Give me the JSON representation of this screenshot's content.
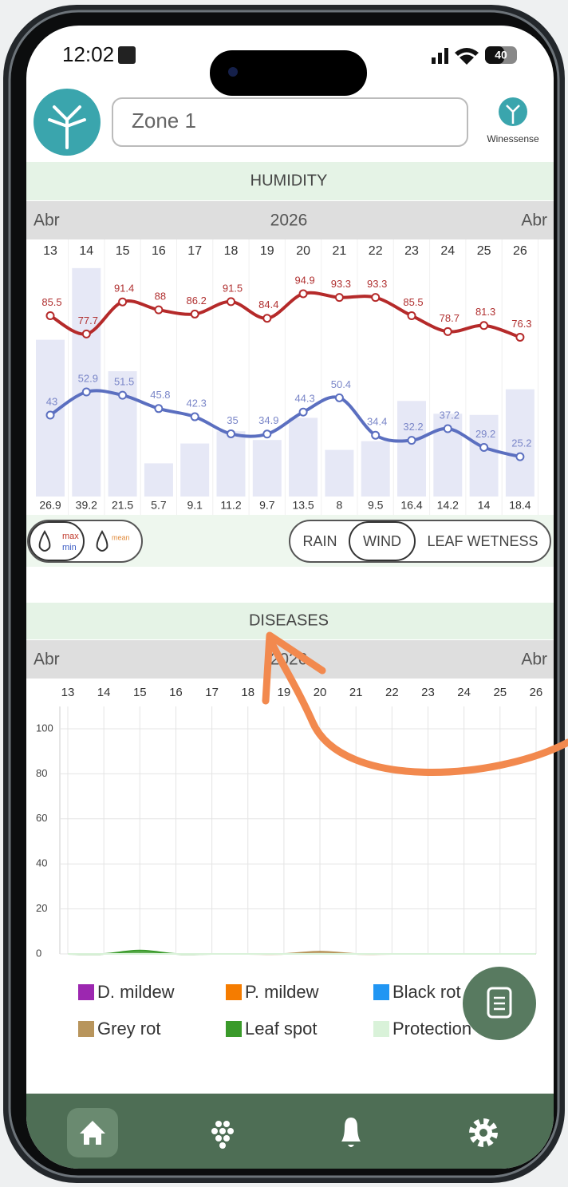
{
  "status_bar": {
    "time": "12:02",
    "battery": "40"
  },
  "header": {
    "zone": "Zone 1",
    "brand": "Winessense"
  },
  "humidity": {
    "title": "HUMIDITY",
    "month_left": "Abr",
    "year": "2026",
    "month_right": "Abr",
    "days": [
      13,
      14,
      15,
      16,
      17,
      18,
      19,
      20,
      21,
      22,
      23,
      24,
      25,
      26
    ],
    "max": [
      85.5,
      77.7,
      91.4,
      88,
      86.2,
      91.5,
      84.4,
      94.9,
      93.3,
      93.3,
      85.5,
      78.7,
      81.3,
      76.3
    ],
    "min": [
      43,
      52.9,
      51.5,
      45.8,
      42.3,
      35,
      34.9,
      44.3,
      50.4,
      34.4,
      32.2,
      37.2,
      29.2,
      25.2
    ],
    "bar_values": [
      26.9,
      39.2,
      21.5,
      5.7,
      9.1,
      11.2,
      9.7,
      13.5,
      8,
      9.5,
      16.4,
      14.2,
      14,
      18.4
    ],
    "toggle_labels": [
      "max",
      "min",
      "mean"
    ],
    "buttons": [
      "RAIN",
      "WIND",
      "LEAF WETNESS"
    ]
  },
  "diseases": {
    "title": "DISEASES",
    "month_left": "Abr",
    "year": "2026",
    "month_right": "Abr",
    "chart_data": {
      "type": "area",
      "categories": [
        13,
        14,
        15,
        16,
        17,
        18,
        19,
        20,
        21,
        22,
        23,
        24,
        25,
        26
      ],
      "ylim": [
        0,
        100
      ],
      "yticks": [
        0,
        20,
        40,
        60,
        80,
        100
      ],
      "grid": true,
      "series": [
        {
          "name": "D. mildew",
          "color": "#9c27b0",
          "values": [
            0,
            0,
            0,
            0,
            0,
            0,
            0,
            0,
            0,
            0,
            0,
            0,
            0,
            0
          ]
        },
        {
          "name": "P. mildew",
          "color": "#f57c00",
          "values": [
            0,
            0,
            0,
            0,
            0,
            0,
            0,
            0,
            0,
            0,
            0,
            0,
            0,
            0
          ]
        },
        {
          "name": "Black rot",
          "color": "#2196f3",
          "values": [
            0,
            0,
            0,
            0,
            0,
            0,
            0,
            0,
            0,
            0,
            0,
            0,
            0,
            0
          ]
        },
        {
          "name": "Grey rot",
          "color": "#b8955c",
          "values": [
            0,
            0,
            0,
            0,
            0,
            0,
            0,
            1,
            0,
            0,
            0,
            0,
            0,
            0
          ]
        },
        {
          "name": "Leaf spot",
          "color": "#3a9a2a",
          "values": [
            0,
            0,
            1.5,
            0,
            0,
            0,
            0,
            0,
            0,
            0,
            0,
            0,
            0,
            0
          ]
        },
        {
          "name": "Protection",
          "color": "#d9f2d9",
          "values": [
            0,
            0,
            0,
            0,
            0,
            0,
            0,
            0,
            0,
            0,
            0,
            0,
            0,
            0
          ]
        }
      ]
    }
  }
}
